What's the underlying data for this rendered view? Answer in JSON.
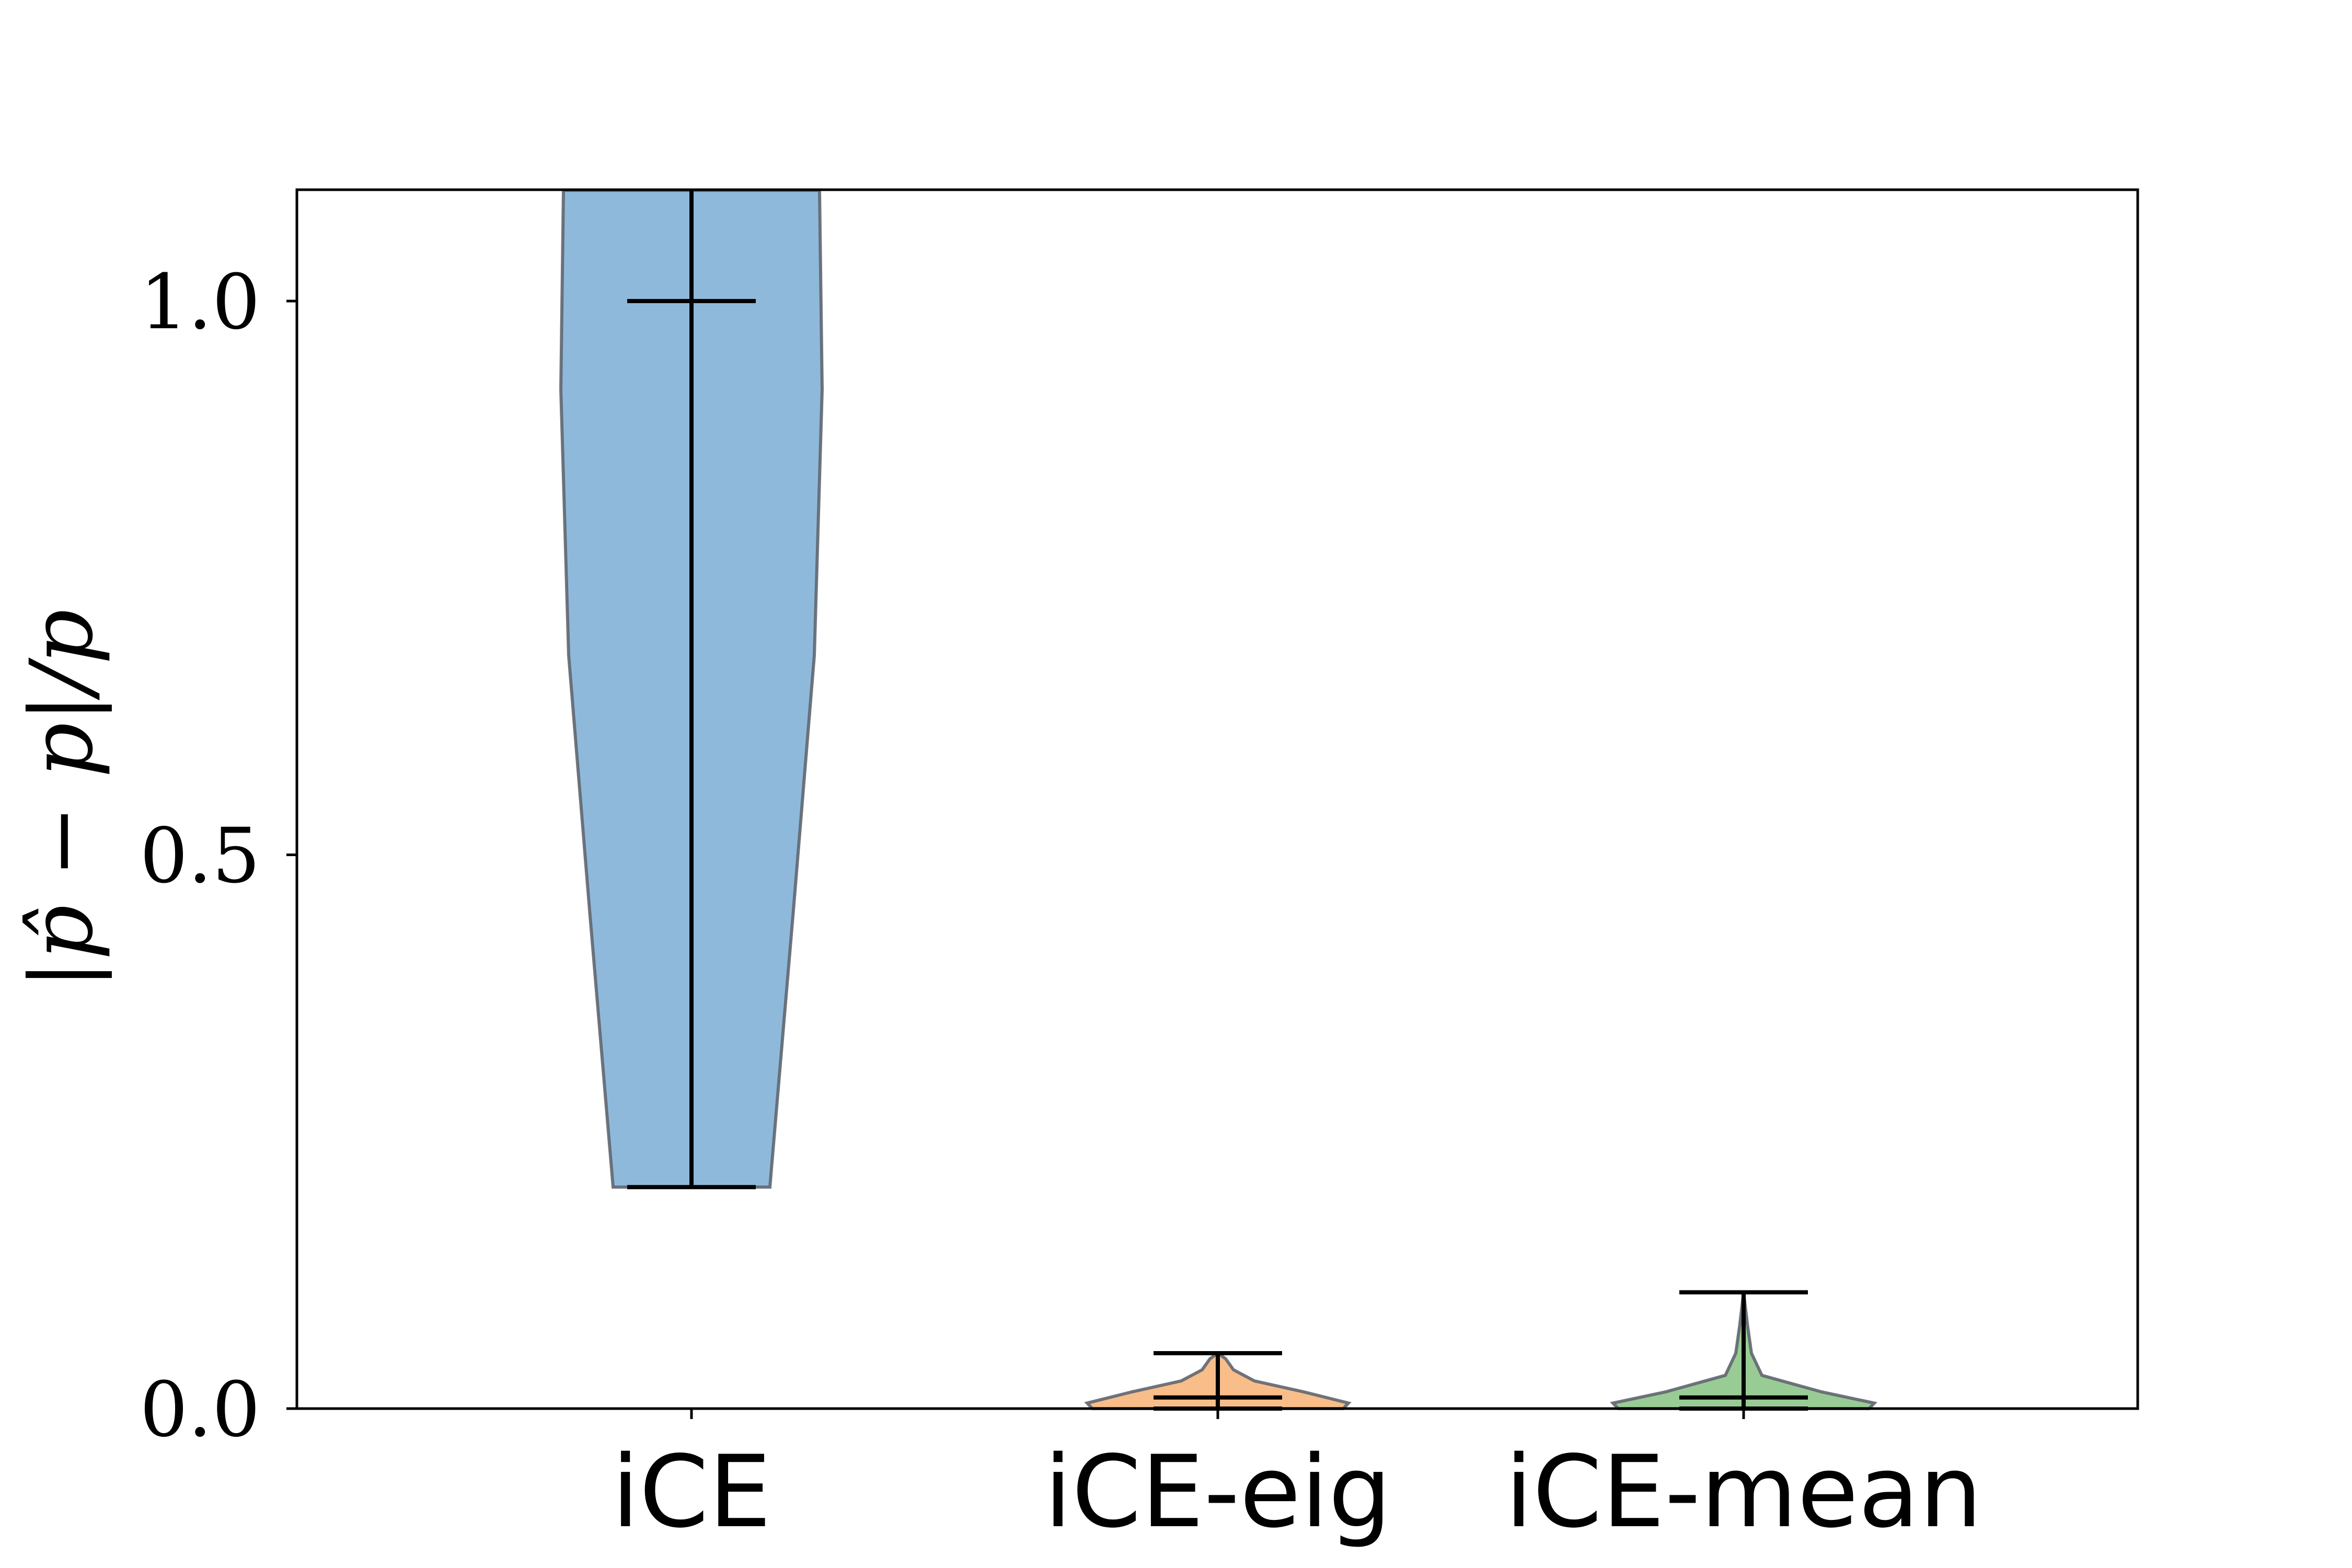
{
  "chart_data": {
    "type": "violin",
    "title": "",
    "xlabel": "",
    "ylabel": "|p̂ − p|/p",
    "ylim": [
      0,
      1.1
    ],
    "yticks": [
      0.0,
      0.5,
      1.0
    ],
    "ytick_labels": [
      "0.0",
      "0.5",
      "1.0"
    ],
    "categories": [
      "iCE",
      "iCE-eig",
      "iCE-mean"
    ],
    "grid": false,
    "legend": "none",
    "series": [
      {
        "label": "iCE",
        "color": "#8fb9da",
        "min": 0.2,
        "median": 1.0,
        "max": 1.1,
        "density": [
          [
            0.2,
            0.3
          ],
          [
            0.45,
            0.39
          ],
          [
            0.68,
            0.47
          ],
          [
            0.92,
            0.5
          ],
          [
            1.1,
            0.49
          ]
        ]
      },
      {
        "label": "iCE-eig",
        "color": "#f9bd8a",
        "min": 0.0,
        "median": 0.01,
        "max": 0.05,
        "density": [
          [
            0.0,
            0.48
          ],
          [
            0.005,
            0.5
          ],
          [
            0.015,
            0.33
          ],
          [
            0.025,
            0.14
          ],
          [
            0.035,
            0.06
          ],
          [
            0.045,
            0.03
          ],
          [
            0.05,
            0.0
          ]
        ]
      },
      {
        "label": "iCE-mean",
        "color": "#99cc94",
        "min": 0.0,
        "median": 0.01,
        "max": 0.105,
        "density": [
          [
            0.0,
            0.48
          ],
          [
            0.005,
            0.5
          ],
          [
            0.015,
            0.3
          ],
          [
            0.03,
            0.07
          ],
          [
            0.05,
            0.03
          ],
          [
            0.075,
            0.015
          ],
          [
            0.105,
            0.0
          ]
        ]
      }
    ]
  }
}
